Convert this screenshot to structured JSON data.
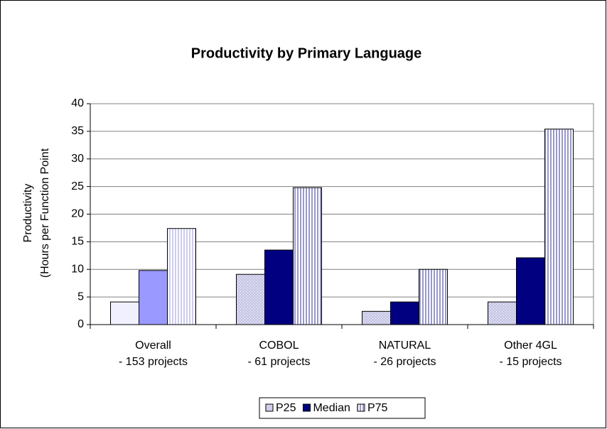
{
  "chart_data": {
    "type": "bar",
    "title": "Productivity by Primary Language",
    "y_label": [
      "Productivity",
      "(Hours per Function Point"
    ],
    "categories": [
      "Overall\n- 153 projects",
      "COBOL\n- 61 projects",
      "NATURAL\n- 26 projects",
      "Other 4GL\n- 15 projects"
    ],
    "series": [
      {
        "name": "P25",
        "color": "#c8c8e6",
        "colors": [
          "#eeeeff",
          "#c8c8e6",
          "#c8c8e6",
          "#c8c8e6"
        ],
        "values": [
          4.1,
          9.1,
          2.4,
          4.1
        ]
      },
      {
        "name": "Median",
        "color": "#000080",
        "colors": [
          "#9999ff",
          "#000080",
          "#000080",
          "#000080"
        ],
        "values": [
          9.8,
          13.5,
          4.1,
          12.1
        ]
      },
      {
        "name": "P75",
        "color": "#9999cc",
        "colors": [
          "#ccccf0",
          "#9999cc",
          "#9999cc",
          "#9999cc"
        ],
        "values": [
          17.4,
          24.8,
          10.0,
          35.4
        ]
      }
    ],
    "ylim": [
      0,
      40
    ],
    "yticks": [
      0,
      5,
      10,
      15,
      20,
      25,
      30,
      35,
      40
    ],
    "grid": true,
    "legend": "bottom"
  }
}
